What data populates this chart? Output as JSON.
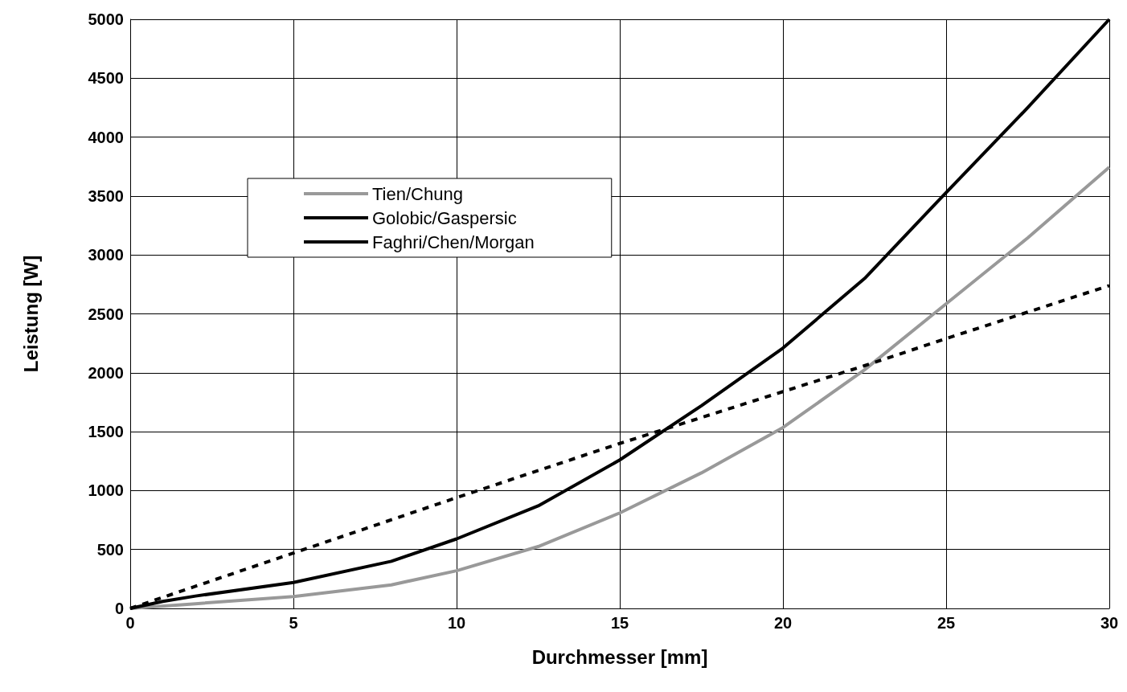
{
  "chart_data": {
    "type": "line",
    "xlabel": "Durchmesser [mm]",
    "ylabel": "Leistung [W]",
    "xlim": [
      0,
      30
    ],
    "xticks": [
      0,
      5,
      10,
      15,
      20,
      25,
      30
    ],
    "ylim": [
      0,
      5000
    ],
    "yticks": [
      0,
      500,
      1000,
      1500,
      2000,
      2500,
      3000,
      3500,
      4000,
      4500,
      5000
    ],
    "grid": true,
    "legend": "top left",
    "marker": "none",
    "series": [
      {
        "name": "Tien/Chung",
        "color": "#999999",
        "line_style": "solid",
        "x": [
          0,
          2,
          5,
          8,
          10,
          12.5,
          15,
          17.5,
          20,
          22.5,
          25,
          27.5,
          30
        ],
        "values": [
          0,
          40,
          100,
          200,
          320,
          525,
          810,
          1150,
          1535,
          2025,
          2585,
          3145,
          3745
        ]
      },
      {
        "name": "Golobic/Gaspersic",
        "color": "#000000",
        "line_style": "dashed",
        "x": [
          0,
          5,
          10,
          15,
          20,
          22.5,
          25,
          30
        ],
        "values": [
          0,
          470,
          940,
          1400,
          1840,
          2060,
          2290,
          2740
        ]
      },
      {
        "name": "Faghri/Chen/Morgan",
        "color": "#000000",
        "line_style": "solid",
        "x": [
          0,
          1,
          2,
          5,
          8,
          10,
          12.5,
          15,
          17.5,
          20,
          22.5,
          25,
          27.5,
          30
        ],
        "values": [
          0,
          60,
          105,
          220,
          400,
          590,
          870,
          1260,
          1720,
          2210,
          2800,
          3530,
          4250,
          5000
        ]
      }
    ]
  }
}
